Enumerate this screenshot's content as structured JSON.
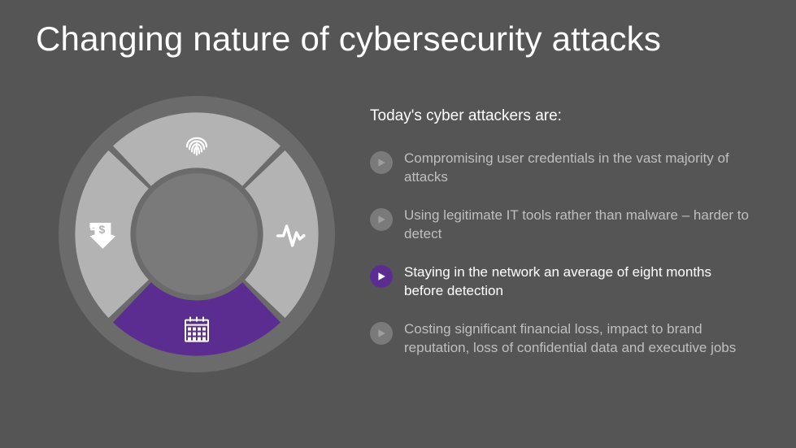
{
  "title": "Changing nature of cybersecurity attacks",
  "subtitle": "Today's cyber attackers are:",
  "colors": {
    "background": "#555555",
    "title_color": "#ffffff",
    "subtitle_color": "#ffffff",
    "bullet_default_text": "#bfbfbf",
    "bullet_active_text": "#ffffff",
    "bullet_icon_default_bg": "#7a7a7a",
    "bullet_icon_default_tri": "#9e9e9e",
    "bullet_icon_active_bg": "#5c2d91",
    "bullet_icon_active_tri": "#ffffff",
    "donut_outer_ring": "#6b6b6b",
    "donut_arc_default": "#b3b3b3",
    "donut_arc_active": "#5c2d91",
    "donut_inner_hub": "#7a7a7a",
    "donut_icon": "#ffffff"
  },
  "bullets": [
    {
      "text": "Compromising user credentials in the vast majority of attacks",
      "active": false
    },
    {
      "text": "Using legitimate IT tools rather than malware – harder to detect",
      "active": false
    },
    {
      "text": "Staying in the network an average of eight months before detection",
      "active": true
    },
    {
      "text": "Costing significant financial loss, impact to brand reputation, loss of confidential data and executive jobs",
      "active": false
    }
  ],
  "donut": {
    "segments": [
      {
        "icon": "fingerprint-icon",
        "active": false
      },
      {
        "icon": "pulse-icon",
        "active": false
      },
      {
        "icon": "calendar-icon",
        "active": true
      },
      {
        "icon": "dollar-down-icon",
        "active": false
      }
    ],
    "outer_radius_pct": 50,
    "ring_outer_pct": 44,
    "ring_inner_pct": 24,
    "hub_radius_pct": 22,
    "gap_deg": 3
  }
}
